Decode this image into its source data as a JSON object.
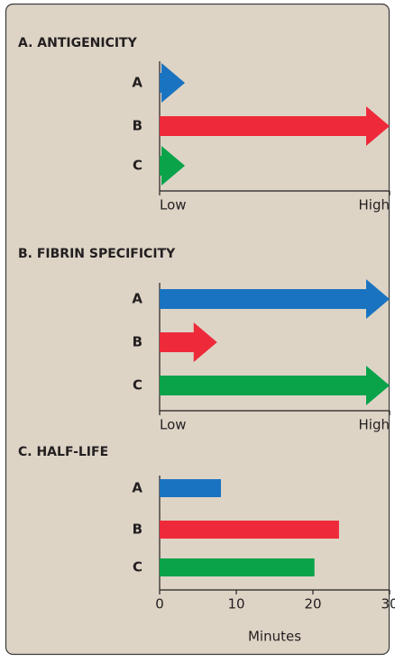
{
  "chart_data": [
    {
      "type": "arrow",
      "title": "A. ANTIGENICITY",
      "categories": [
        "A",
        "B",
        "C"
      ],
      "values": [
        0.11,
        1.0,
        0.11
      ],
      "colors": [
        "#1a73c0",
        "#ee2a3a",
        "#0aa34a"
      ],
      "xlim": [
        0,
        1
      ],
      "xticks": [
        {
          "value": 0,
          "label": "Low"
        },
        {
          "value": 1,
          "label": "High"
        }
      ]
    },
    {
      "type": "arrow",
      "title": "B. FIBRIN SPECIFICITY",
      "categories": [
        "A",
        "B",
        "C"
      ],
      "values": [
        1.0,
        0.25,
        1.0
      ],
      "colors": [
        "#1a73c0",
        "#ee2a3a",
        "#0aa34a"
      ],
      "xlim": [
        0,
        1
      ],
      "xticks": [
        {
          "value": 0,
          "label": "Low"
        },
        {
          "value": 1,
          "label": "High"
        }
      ]
    },
    {
      "type": "bar",
      "title": "C. HALF-LIFE",
      "categories": [
        "A",
        "B",
        "C"
      ],
      "values": [
        8,
        23.4,
        20.2
      ],
      "colors": [
        "#1a73c0",
        "#ee2a3a",
        "#0aa34a"
      ],
      "xlabel": "Minutes",
      "xlim": [
        0,
        30
      ],
      "xticks": [
        0,
        10,
        20,
        30
      ]
    }
  ]
}
